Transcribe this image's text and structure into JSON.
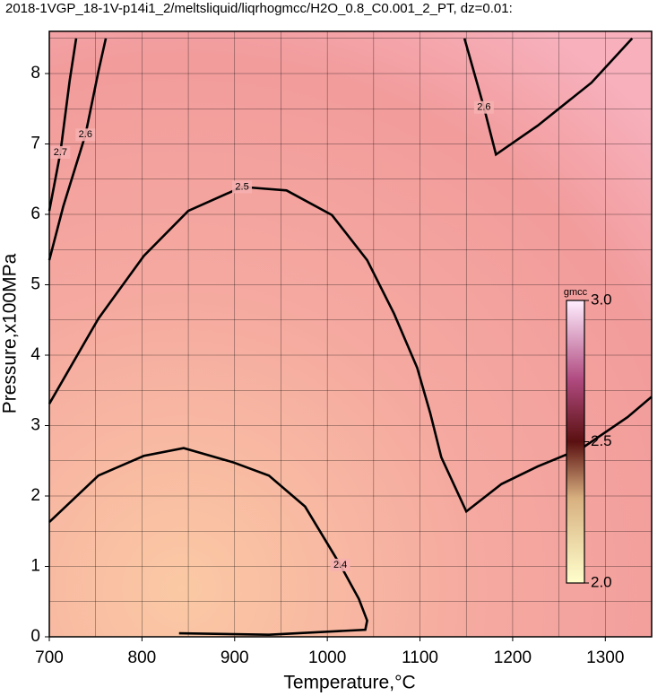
{
  "chart_data": {
    "type": "contour",
    "title": "2018-1VGP_18-1V-p14i1_2/meltsliquid/liqrhogmcc/H2O_0.8_C0.001_2_PT, dz=0.01:",
    "x_label": "Temperature,°C",
    "y_label": "Pressure,x100MPa",
    "xlim": [
      700,
      1350
    ],
    "ylim": [
      0,
      8.6
    ],
    "xticks": [
      700,
      800,
      900,
      1000,
      1100,
      1200,
      1300
    ],
    "yticks": [
      0,
      1,
      2,
      3,
      4,
      5,
      6,
      7,
      8
    ],
    "xgrid": [
      700,
      750,
      800,
      850,
      900,
      950,
      1000,
      1050,
      1100,
      1150,
      1200,
      1250,
      1300,
      1350
    ],
    "ygrid": [
      0,
      0.5,
      1,
      1.5,
      2,
      2.5,
      3,
      3.5,
      4,
      4.5,
      5,
      5.5,
      6,
      6.5,
      7,
      7.5,
      8,
      8.5
    ],
    "contours": [
      {
        "level": 2.4,
        "x": [
          700,
          753,
          802,
          845,
          898,
          937,
          976,
          1014,
          1034,
          1043,
          1041,
          937,
          840
        ],
        "y": [
          1.63,
          2.29,
          2.57,
          2.68,
          2.48,
          2.29,
          1.85,
          1.02,
          0.54,
          0.23,
          0.1,
          0.03,
          0.05
        ]
      },
      {
        "level": 2.5,
        "x": [
          700,
          753,
          802,
          850,
          908,
          956,
          1005,
          1043,
          1072,
          1097,
          1111,
          1123,
          1150,
          1188,
          1227,
          1275,
          1324,
          1350
        ],
        "y": [
          3.31,
          4.52,
          5.41,
          6.05,
          6.39,
          6.34,
          5.99,
          5.35,
          4.59,
          3.82,
          3.18,
          2.55,
          1.78,
          2.17,
          2.42,
          2.68,
          3.12,
          3.41
        ]
      },
      {
        "level": 2.6,
        "x": [
          1148,
          1169,
          1182,
          1227,
          1285,
          1329
        ],
        "y": [
          8.5,
          7.52,
          6.85,
          7.26,
          7.87,
          8.5
        ]
      },
      {
        "level": 2.6,
        "x": [
          700,
          715,
          739,
          753,
          761
        ],
        "y": [
          5.35,
          6.11,
          7.13,
          8.03,
          8.5
        ]
      },
      {
        "level": 2.7,
        "x": [
          700,
          712,
          722,
          729
        ],
        "y": [
          6.05,
          6.88,
          7.9,
          8.5
        ]
      }
    ],
    "colorbar": {
      "title": "gmcc",
      "clim": [
        2,
        3
      ],
      "ticks": [
        {
          "value": 2,
          "label": "2.0"
        },
        2.5,
        {
          "value": 3,
          "label": "3.0"
        }
      ]
    }
  }
}
